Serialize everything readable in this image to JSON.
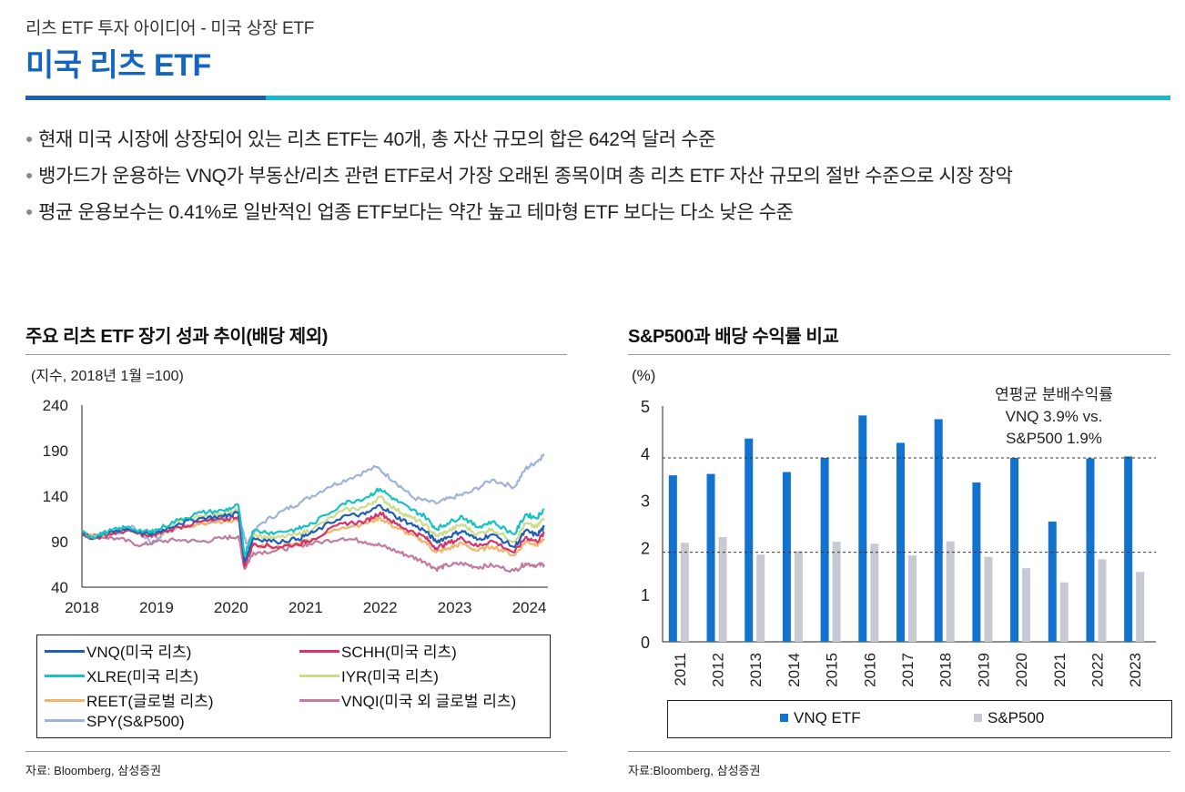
{
  "header": {
    "subtitle": "리츠 ETF 투자 아이디어 - 미국 상장 ETF",
    "title": "미국 리츠 ETF"
  },
  "bullets": [
    "현재 미국 시장에 상장되어 있는 리츠 ETF는 40개, 총 자산 규모의 합은 642억 달러 수준",
    "뱅가드가 운용하는 VNQ가 부동산/리츠 관련 ETF로서 가장 오래된 종목이며 총 리츠 ETF 자산 규모의 절반 수준으로 시장 장악",
    "평균 운용보수는 0.41%로 일반적인 업종 ETF보다는 약간 높고 테마형 ETF 보다는 다소 낮은 수준"
  ],
  "left_panel": {
    "title": "주요 리츠 ETF 장기 성과 추이(배당 제외)",
    "source": "자료: Bloomberg, 삼성증권"
  },
  "right_panel": {
    "title": "S&P500과 배당 수익률 비교",
    "source": "자료:Bloomberg, 삼성증권"
  },
  "colors": {
    "VNQ": "#1f5fb5",
    "SCHH": "#d6336c",
    "XLRE": "#17c2c2",
    "IYR": "#cddc8a",
    "REET": "#f2b46a",
    "VNQI": "#c27ba0",
    "SPY": "#9fb3d9",
    "bar_vnq": "#1273cf",
    "bar_sp": "#c7c9d3",
    "accent": "#1565c0"
  },
  "chart_data": [
    {
      "type": "line",
      "title": "주요 리츠 ETF 장기 성과 추이(배당 제외)",
      "unit_label": "(지수, 2018년 1월 =100)",
      "ylim": [
        40,
        240
      ],
      "yticks": [
        "240",
        "190",
        "140",
        "90",
        "40"
      ],
      "xlim": [
        2018,
        2024.25
      ],
      "xticks": [
        "2018",
        "2019",
        "2020",
        "2021",
        "2022",
        "2023",
        "2024"
      ],
      "series": [
        {
          "name": "VNQ(미국 리츠)",
          "key": "VNQ",
          "points": [
            [
              2018,
              100
            ],
            [
              2018.15,
              94
            ],
            [
              2018.35,
              100
            ],
            [
              2018.6,
              104
            ],
            [
              2018.9,
              98
            ],
            [
              2019.0,
              100
            ],
            [
              2019.3,
              110
            ],
            [
              2019.6,
              116
            ],
            [
              2019.9,
              118
            ],
            [
              2020.1,
              122
            ],
            [
              2020.18,
              68
            ],
            [
              2020.3,
              94
            ],
            [
              2020.6,
              90
            ],
            [
              2020.9,
              93
            ],
            [
              2021.1,
              100
            ],
            [
              2021.5,
              118
            ],
            [
              2021.8,
              120
            ],
            [
              2022.0,
              130
            ],
            [
              2022.2,
              118
            ],
            [
              2022.4,
              110
            ],
            [
              2022.6,
              102
            ],
            [
              2022.75,
              90
            ],
            [
              2022.9,
              95
            ],
            [
              2023.1,
              102
            ],
            [
              2023.3,
              92
            ],
            [
              2023.5,
              98
            ],
            [
              2023.8,
              84
            ],
            [
              2023.95,
              102
            ],
            [
              2024.1,
              97
            ],
            [
              2024.2,
              106
            ]
          ]
        },
        {
          "name": "SCHH(미국 리츠)",
          "key": "SCHH",
          "points": [
            [
              2018,
              100
            ],
            [
              2018.15,
              93
            ],
            [
              2018.35,
              98
            ],
            [
              2018.6,
              102
            ],
            [
              2018.9,
              96
            ],
            [
              2019.0,
              98
            ],
            [
              2019.3,
              106
            ],
            [
              2019.6,
              112
            ],
            [
              2019.9,
              114
            ],
            [
              2020.1,
              118
            ],
            [
              2020.18,
              63
            ],
            [
              2020.3,
              88
            ],
            [
              2020.6,
              84
            ],
            [
              2020.9,
              87
            ],
            [
              2021.1,
              93
            ],
            [
              2021.5,
              110
            ],
            [
              2021.8,
              112
            ],
            [
              2022.0,
              122
            ],
            [
              2022.2,
              110
            ],
            [
              2022.4,
              102
            ],
            [
              2022.6,
              95
            ],
            [
              2022.75,
              83
            ],
            [
              2022.9,
              88
            ],
            [
              2023.1,
              94
            ],
            [
              2023.3,
              85
            ],
            [
              2023.5,
              91
            ],
            [
              2023.8,
              78
            ],
            [
              2023.95,
              95
            ],
            [
              2024.1,
              90
            ],
            [
              2024.2,
              99
            ]
          ]
        },
        {
          "name": "XLRE(미국 리츠)",
          "key": "XLRE",
          "points": [
            [
              2018,
              100
            ],
            [
              2018.15,
              95
            ],
            [
              2018.35,
              101
            ],
            [
              2018.6,
              106
            ],
            [
              2018.9,
              100
            ],
            [
              2019.0,
              103
            ],
            [
              2019.3,
              114
            ],
            [
              2019.6,
              122
            ],
            [
              2019.9,
              124
            ],
            [
              2020.1,
              130
            ],
            [
              2020.18,
              75
            ],
            [
              2020.3,
              102
            ],
            [
              2020.6,
              100
            ],
            [
              2020.9,
              104
            ],
            [
              2021.1,
              110
            ],
            [
              2021.5,
              132
            ],
            [
              2021.8,
              138
            ],
            [
              2022.0,
              148
            ],
            [
              2022.2,
              136
            ],
            [
              2022.4,
              126
            ],
            [
              2022.6,
              118
            ],
            [
              2022.75,
              104
            ],
            [
              2022.9,
              110
            ],
            [
              2023.1,
              118
            ],
            [
              2023.3,
              106
            ],
            [
              2023.5,
              112
            ],
            [
              2023.8,
              98
            ],
            [
              2023.95,
              120
            ],
            [
              2024.1,
              116
            ],
            [
              2024.2,
              126
            ]
          ]
        },
        {
          "name": "IYR(미국 리츠)",
          "key": "IYR",
          "points": [
            [
              2018,
              100
            ],
            [
              2018.15,
              94
            ],
            [
              2018.35,
              100
            ],
            [
              2018.6,
              104
            ],
            [
              2018.9,
              99
            ],
            [
              2019.0,
              101
            ],
            [
              2019.3,
              112
            ],
            [
              2019.6,
              118
            ],
            [
              2019.9,
              120
            ],
            [
              2020.1,
              125
            ],
            [
              2020.18,
              70
            ],
            [
              2020.3,
              97
            ],
            [
              2020.6,
              94
            ],
            [
              2020.9,
              98
            ],
            [
              2021.1,
              104
            ],
            [
              2021.5,
              124
            ],
            [
              2021.8,
              128
            ],
            [
              2022.0,
              139
            ],
            [
              2022.2,
              126
            ],
            [
              2022.4,
              117
            ],
            [
              2022.6,
              109
            ],
            [
              2022.75,
              96
            ],
            [
              2022.9,
              101
            ],
            [
              2023.1,
              109
            ],
            [
              2023.3,
              98
            ],
            [
              2023.5,
              104
            ],
            [
              2023.8,
              90
            ],
            [
              2023.95,
              110
            ],
            [
              2024.1,
              106
            ],
            [
              2024.2,
              116
            ]
          ]
        },
        {
          "name": "REET(글로벌 리츠)",
          "key": "REET",
          "points": [
            [
              2018,
              100
            ],
            [
              2018.15,
              94
            ],
            [
              2018.35,
              99
            ],
            [
              2018.6,
              102
            ],
            [
              2018.9,
              96
            ],
            [
              2019.0,
              99
            ],
            [
              2019.3,
              106
            ],
            [
              2019.6,
              110
            ],
            [
              2019.9,
              112
            ],
            [
              2020.1,
              115
            ],
            [
              2020.18,
              64
            ],
            [
              2020.3,
              86
            ],
            [
              2020.6,
              84
            ],
            [
              2020.9,
              88
            ],
            [
              2021.1,
              93
            ],
            [
              2021.5,
              106
            ],
            [
              2021.8,
              110
            ],
            [
              2022.0,
              116
            ],
            [
              2022.2,
              106
            ],
            [
              2022.4,
              98
            ],
            [
              2022.6,
              90
            ],
            [
              2022.75,
              78
            ],
            [
              2022.9,
              82
            ],
            [
              2023.1,
              88
            ],
            [
              2023.3,
              80
            ],
            [
              2023.5,
              85
            ],
            [
              2023.8,
              75
            ],
            [
              2023.95,
              90
            ],
            [
              2024.1,
              87
            ],
            [
              2024.2,
              93
            ]
          ]
        },
        {
          "name": "VNQI(미국 외 글로벌 리츠)",
          "key": "VNQI",
          "points": [
            [
              2018,
              100
            ],
            [
              2018.2,
              96
            ],
            [
              2018.5,
              93
            ],
            [
              2018.8,
              86
            ],
            [
              2019.0,
              90
            ],
            [
              2019.3,
              92
            ],
            [
              2019.6,
              90
            ],
            [
              2019.9,
              94
            ],
            [
              2020.1,
              96
            ],
            [
              2020.18,
              60
            ],
            [
              2020.3,
              78
            ],
            [
              2020.6,
              80
            ],
            [
              2020.9,
              86
            ],
            [
              2021.1,
              88
            ],
            [
              2021.5,
              94
            ],
            [
              2021.8,
              90
            ],
            [
              2022.0,
              86
            ],
            [
              2022.2,
              80
            ],
            [
              2022.4,
              74
            ],
            [
              2022.6,
              68
            ],
            [
              2022.75,
              60
            ],
            [
              2022.9,
              64
            ],
            [
              2023.1,
              66
            ],
            [
              2023.3,
              62
            ],
            [
              2023.5,
              64
            ],
            [
              2023.8,
              58
            ],
            [
              2023.95,
              66
            ],
            [
              2024.1,
              64
            ],
            [
              2024.2,
              65
            ]
          ]
        },
        {
          "name": "SPY(S&P500)",
          "key": "SPY",
          "points": [
            [
              2018,
              100
            ],
            [
              2018.15,
              95
            ],
            [
              2018.4,
              98
            ],
            [
              2018.7,
              106
            ],
            [
              2018.95,
              88
            ],
            [
              2019.1,
              100
            ],
            [
              2019.4,
              108
            ],
            [
              2019.7,
              110
            ],
            [
              2019.95,
              118
            ],
            [
              2020.1,
              122
            ],
            [
              2020.2,
              88
            ],
            [
              2020.4,
              110
            ],
            [
              2020.7,
              124
            ],
            [
              2020.95,
              134
            ],
            [
              2021.3,
              150
            ],
            [
              2021.6,
              160
            ],
            [
              2021.95,
              172
            ],
            [
              2022.2,
              156
            ],
            [
              2022.45,
              138
            ],
            [
              2022.75,
              132
            ],
            [
              2022.95,
              138
            ],
            [
              2023.2,
              144
            ],
            [
              2023.5,
              158
            ],
            [
              2023.8,
              150
            ],
            [
              2023.95,
              170
            ],
            [
              2024.1,
              178
            ],
            [
              2024.2,
              186
            ]
          ]
        }
      ]
    },
    {
      "type": "bar",
      "title": "S&P500과 배당 수익률 비교",
      "unit_label": "(%)",
      "ylim": [
        0,
        5
      ],
      "yticks": [
        "5",
        "4",
        "3",
        "2",
        "1",
        "0"
      ],
      "categories": [
        "2011",
        "2012",
        "2013",
        "2014",
        "2015",
        "2016",
        "2017",
        "2018",
        "2019",
        "2020",
        "2021",
        "2022",
        "2023"
      ],
      "series": [
        {
          "name": "VNQ ETF",
          "key": "bar_vnq",
          "values": [
            3.53,
            3.56,
            4.31,
            3.6,
            3.9,
            4.8,
            4.22,
            4.72,
            3.38,
            3.9,
            2.55,
            3.89,
            3.93
          ]
        },
        {
          "name": "S&P500",
          "key": "bar_sp",
          "values": [
            2.1,
            2.22,
            1.85,
            1.92,
            2.12,
            2.08,
            1.83,
            2.13,
            1.8,
            1.56,
            1.26,
            1.75,
            1.48
          ]
        }
      ],
      "reference_lines": [
        3.9,
        1.9
      ],
      "annotation": [
        "연평균 분배수익률",
        "VNQ 3.9% vs.",
        "S&P500 1.9%"
      ]
    }
  ]
}
